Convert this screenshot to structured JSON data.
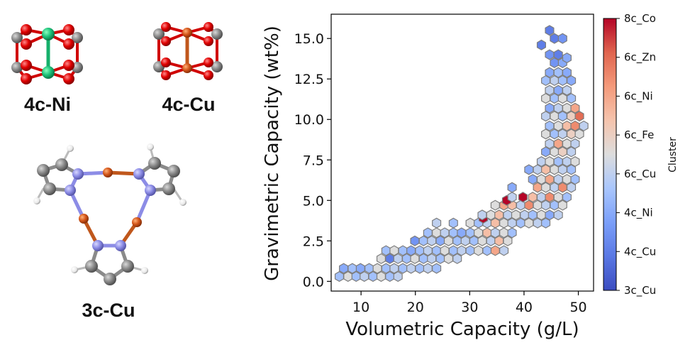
{
  "molecules": [
    {
      "id": "4c-Ni",
      "label": "4c-Ni"
    },
    {
      "id": "4c-Cu",
      "label": "4c-Cu"
    },
    {
      "id": "3c-Cu",
      "label": "3c-Cu"
    }
  ],
  "chart_data": {
    "type": "hexbin",
    "xlabel": "Volumetric Capacity (g/L)",
    "ylabel": "Gravimetric Capacity (wt%)",
    "xlim": [
      4.5,
      52.8
    ],
    "ylim": [
      -0.6,
      16.5
    ],
    "xticks": [
      10,
      20,
      30,
      40,
      50
    ],
    "yticks": [
      0.0,
      2.5,
      5.0,
      7.5,
      10.0,
      12.5,
      15.0
    ],
    "hex_x_step": 1.55,
    "hex_y_step": 0.55,
    "cluster_levels": [
      "3c_Cu",
      "4c_Cu",
      "4c_Ni",
      "6c_Cu",
      "6c_Fe",
      "6c_Ni",
      "6c_Zn",
      "8c_Co"
    ],
    "colorbar_label": "Cluster",
    "colormap": "coolwarm",
    "colors": {
      "low": "#3b4cc0",
      "mid": "#dddddd",
      "high": "#b40426",
      "edge": "#7d7d7d"
    },
    "hexbins": [
      {
        "x": 6.0,
        "y": 0.3,
        "c": 2.5
      },
      {
        "x": 7.6,
        "y": 0.3,
        "c": 3.5
      },
      {
        "x": 9.1,
        "y": 0.3,
        "c": 2.5
      },
      {
        "x": 10.6,
        "y": 0.3,
        "c": 3.0
      },
      {
        "x": 12.2,
        "y": 0.3,
        "c": 2.5
      },
      {
        "x": 13.7,
        "y": 0.3,
        "c": 3.5
      },
      {
        "x": 15.3,
        "y": 0.3,
        "c": 2.5
      },
      {
        "x": 16.8,
        "y": 0.3,
        "c": 3.0
      },
      {
        "x": 6.8,
        "y": 0.8,
        "c": 2.0
      },
      {
        "x": 8.4,
        "y": 0.8,
        "c": 2.5
      },
      {
        "x": 9.9,
        "y": 0.8,
        "c": 2.0
      },
      {
        "x": 11.5,
        "y": 0.8,
        "c": 2.5
      },
      {
        "x": 13.0,
        "y": 0.8,
        "c": 3.5
      },
      {
        "x": 14.6,
        "y": 0.8,
        "c": 2.5
      },
      {
        "x": 16.1,
        "y": 0.8,
        "c": 3.0
      },
      {
        "x": 17.7,
        "y": 0.8,
        "c": 2.5
      },
      {
        "x": 19.2,
        "y": 0.8,
        "c": 3.0
      },
      {
        "x": 20.8,
        "y": 0.8,
        "c": 2.5
      },
      {
        "x": 22.3,
        "y": 0.8,
        "c": 3.0
      },
      {
        "x": 23.9,
        "y": 0.8,
        "c": 2.5
      },
      {
        "x": 13.7,
        "y": 1.4,
        "c": 3.5
      },
      {
        "x": 15.3,
        "y": 1.4,
        "c": 1.0
      },
      {
        "x": 16.8,
        "y": 1.4,
        "c": 3.0
      },
      {
        "x": 18.4,
        "y": 1.4,
        "c": 2.5
      },
      {
        "x": 19.9,
        "y": 1.4,
        "c": 3.5
      },
      {
        "x": 21.5,
        "y": 1.4,
        "c": 2.5
      },
      {
        "x": 23.0,
        "y": 1.4,
        "c": 3.0
      },
      {
        "x": 24.6,
        "y": 1.4,
        "c": 2.5
      },
      {
        "x": 26.1,
        "y": 1.4,
        "c": 3.5
      },
      {
        "x": 27.7,
        "y": 1.4,
        "c": 3.0
      },
      {
        "x": 14.6,
        "y": 1.9,
        "c": 2.5
      },
      {
        "x": 16.1,
        "y": 1.9,
        "c": 3.5
      },
      {
        "x": 17.7,
        "y": 1.9,
        "c": 2.5
      },
      {
        "x": 19.2,
        "y": 1.9,
        "c": 2.0
      },
      {
        "x": 20.8,
        "y": 1.9,
        "c": 2.5
      },
      {
        "x": 22.3,
        "y": 1.9,
        "c": 3.0
      },
      {
        "x": 23.9,
        "y": 1.9,
        "c": 2.5
      },
      {
        "x": 25.4,
        "y": 1.9,
        "c": 3.5
      },
      {
        "x": 27.0,
        "y": 1.9,
        "c": 2.5
      },
      {
        "x": 28.5,
        "y": 1.9,
        "c": 3.0
      },
      {
        "x": 30.1,
        "y": 1.9,
        "c": 2.5
      },
      {
        "x": 31.6,
        "y": 1.9,
        "c": 3.5
      },
      {
        "x": 33.2,
        "y": 1.9,
        "c": 2.5
      },
      {
        "x": 34.7,
        "y": 1.9,
        "c": 5.0
      },
      {
        "x": 36.3,
        "y": 1.9,
        "c": 3.0
      },
      {
        "x": 19.9,
        "y": 2.5,
        "c": 1.5
      },
      {
        "x": 21.5,
        "y": 2.5,
        "c": 2.5
      },
      {
        "x": 23.0,
        "y": 2.5,
        "c": 3.0
      },
      {
        "x": 24.6,
        "y": 2.5,
        "c": 2.0
      },
      {
        "x": 26.1,
        "y": 2.5,
        "c": 3.5
      },
      {
        "x": 27.7,
        "y": 2.5,
        "c": 2.5
      },
      {
        "x": 29.2,
        "y": 2.5,
        "c": 3.0
      },
      {
        "x": 30.8,
        "y": 2.5,
        "c": 2.5
      },
      {
        "x": 32.3,
        "y": 2.5,
        "c": 3.5
      },
      {
        "x": 33.9,
        "y": 2.5,
        "c": 3.0
      },
      {
        "x": 35.4,
        "y": 2.5,
        "c": 4.5
      },
      {
        "x": 37.0,
        "y": 2.5,
        "c": 3.5
      },
      {
        "x": 22.3,
        "y": 3.0,
        "c": 2.5
      },
      {
        "x": 23.9,
        "y": 3.0,
        "c": 3.5
      },
      {
        "x": 25.4,
        "y": 3.0,
        "c": 3.0
      },
      {
        "x": 27.0,
        "y": 3.0,
        "c": 2.5
      },
      {
        "x": 28.5,
        "y": 3.0,
        "c": 2.0
      },
      {
        "x": 30.1,
        "y": 3.0,
        "c": 2.5
      },
      {
        "x": 31.6,
        "y": 3.0,
        "c": 3.5
      },
      {
        "x": 33.2,
        "y": 3.0,
        "c": 4.5
      },
      {
        "x": 34.7,
        "y": 3.0,
        "c": 3.0
      },
      {
        "x": 36.3,
        "y": 3.0,
        "c": 3.5
      },
      {
        "x": 37.8,
        "y": 3.0,
        "c": 2.5
      },
      {
        "x": 23.9,
        "y": 3.6,
        "c": 3.0
      },
      {
        "x": 27.0,
        "y": 3.6,
        "c": 2.5
      },
      {
        "x": 30.1,
        "y": 3.6,
        "c": 3.5
      },
      {
        "x": 31.6,
        "y": 3.6,
        "c": 2.5
      },
      {
        "x": 33.2,
        "y": 3.6,
        "c": 3.0
      },
      {
        "x": 34.7,
        "y": 3.6,
        "c": 4.5
      },
      {
        "x": 36.3,
        "y": 3.6,
        "c": 3.5
      },
      {
        "x": 37.8,
        "y": 3.6,
        "c": 3.0
      },
      {
        "x": 39.4,
        "y": 3.6,
        "c": 2.5
      },
      {
        "x": 40.9,
        "y": 3.6,
        "c": 3.5
      },
      {
        "x": 42.5,
        "y": 3.6,
        "c": 3.0
      },
      {
        "x": 44.0,
        "y": 3.6,
        "c": 2.5
      },
      {
        "x": 32.5,
        "y": 3.9,
        "c": 7.8
      },
      {
        "x": 32.3,
        "y": 4.1,
        "c": 3.0
      },
      {
        "x": 33.9,
        "y": 4.1,
        "c": 3.5
      },
      {
        "x": 35.4,
        "y": 4.1,
        "c": 4.5
      },
      {
        "x": 37.0,
        "y": 4.1,
        "c": 3.0
      },
      {
        "x": 38.5,
        "y": 4.1,
        "c": 3.5
      },
      {
        "x": 40.1,
        "y": 4.1,
        "c": 3.0
      },
      {
        "x": 41.6,
        "y": 4.1,
        "c": 2.5
      },
      {
        "x": 43.2,
        "y": 4.1,
        "c": 3.5
      },
      {
        "x": 44.7,
        "y": 4.1,
        "c": 2.0
      },
      {
        "x": 46.3,
        "y": 4.1,
        "c": 3.0
      },
      {
        "x": 34.7,
        "y": 4.7,
        "c": 3.5
      },
      {
        "x": 36.3,
        "y": 4.7,
        "c": 5.0
      },
      {
        "x": 37.8,
        "y": 4.7,
        "c": 4.5
      },
      {
        "x": 39.4,
        "y": 4.7,
        "c": 3.0
      },
      {
        "x": 40.9,
        "y": 4.7,
        "c": 5.5
      },
      {
        "x": 42.5,
        "y": 4.7,
        "c": 3.5
      },
      {
        "x": 44.0,
        "y": 4.7,
        "c": 3.0
      },
      {
        "x": 45.6,
        "y": 4.7,
        "c": 2.5
      },
      {
        "x": 47.1,
        "y": 4.7,
        "c": 3.5
      },
      {
        "x": 36.8,
        "y": 5.0,
        "c": 7.8
      },
      {
        "x": 39.8,
        "y": 5.2,
        "c": 7.8
      },
      {
        "x": 37.8,
        "y": 5.2,
        "c": 3.0
      },
      {
        "x": 41.6,
        "y": 5.2,
        "c": 4.5
      },
      {
        "x": 43.2,
        "y": 5.2,
        "c": 3.0
      },
      {
        "x": 44.7,
        "y": 5.2,
        "c": 5.5
      },
      {
        "x": 46.3,
        "y": 5.2,
        "c": 3.5
      },
      {
        "x": 47.9,
        "y": 5.2,
        "c": 2.5
      },
      {
        "x": 42.5,
        "y": 5.8,
        "c": 5.0
      },
      {
        "x": 44.0,
        "y": 5.8,
        "c": 3.5
      },
      {
        "x": 45.6,
        "y": 5.8,
        "c": 3.0
      },
      {
        "x": 47.1,
        "y": 5.8,
        "c": 5.5
      },
      {
        "x": 48.7,
        "y": 5.8,
        "c": 3.0
      },
      {
        "x": 37.8,
        "y": 5.8,
        "c": 2.0
      },
      {
        "x": 41.6,
        "y": 6.3,
        "c": 2.0
      },
      {
        "x": 43.2,
        "y": 6.3,
        "c": 3.5
      },
      {
        "x": 44.7,
        "y": 6.3,
        "c": 5.0
      },
      {
        "x": 46.3,
        "y": 6.3,
        "c": 3.0
      },
      {
        "x": 47.9,
        "y": 6.3,
        "c": 3.5
      },
      {
        "x": 49.4,
        "y": 6.3,
        "c": 2.5
      },
      {
        "x": 40.9,
        "y": 6.9,
        "c": 2.0
      },
      {
        "x": 42.5,
        "y": 6.9,
        "c": 3.0
      },
      {
        "x": 44.0,
        "y": 6.9,
        "c": 4.5
      },
      {
        "x": 45.6,
        "y": 6.9,
        "c": 3.5
      },
      {
        "x": 47.1,
        "y": 6.9,
        "c": 3.0
      },
      {
        "x": 48.7,
        "y": 6.9,
        "c": 2.5
      },
      {
        "x": 43.2,
        "y": 7.4,
        "c": 3.0
      },
      {
        "x": 44.7,
        "y": 7.4,
        "c": 3.5
      },
      {
        "x": 46.3,
        "y": 7.4,
        "c": 2.5
      },
      {
        "x": 47.9,
        "y": 7.4,
        "c": 3.0
      },
      {
        "x": 49.4,
        "y": 7.4,
        "c": 3.5
      },
      {
        "x": 44.0,
        "y": 8.0,
        "c": 2.0
      },
      {
        "x": 45.6,
        "y": 8.0,
        "c": 3.5
      },
      {
        "x": 47.1,
        "y": 8.0,
        "c": 4.0
      },
      {
        "x": 48.7,
        "y": 8.0,
        "c": 3.0
      },
      {
        "x": 44.7,
        "y": 8.5,
        "c": 3.0
      },
      {
        "x": 46.3,
        "y": 8.5,
        "c": 5.0
      },
      {
        "x": 47.9,
        "y": 8.5,
        "c": 3.5
      },
      {
        "x": 49.4,
        "y": 8.5,
        "c": 3.0
      },
      {
        "x": 44.0,
        "y": 9.1,
        "c": 3.5
      },
      {
        "x": 45.6,
        "y": 9.1,
        "c": 2.5
      },
      {
        "x": 47.1,
        "y": 9.1,
        "c": 3.0
      },
      {
        "x": 48.7,
        "y": 9.1,
        "c": 4.0
      },
      {
        "x": 50.2,
        "y": 9.1,
        "c": 3.5
      },
      {
        "x": 44.7,
        "y": 9.6,
        "c": 2.5
      },
      {
        "x": 46.3,
        "y": 9.6,
        "c": 3.5
      },
      {
        "x": 47.9,
        "y": 9.6,
        "c": 4.5
      },
      {
        "x": 49.4,
        "y": 9.6,
        "c": 5.5
      },
      {
        "x": 51.0,
        "y": 9.6,
        "c": 3.0
      },
      {
        "x": 44.0,
        "y": 10.2,
        "c": 3.0
      },
      {
        "x": 45.6,
        "y": 10.2,
        "c": 3.5
      },
      {
        "x": 47.1,
        "y": 10.2,
        "c": 2.5
      },
      {
        "x": 48.7,
        "y": 10.2,
        "c": 4.0
      },
      {
        "x": 50.2,
        "y": 10.2,
        "c": 6.0
      },
      {
        "x": 44.7,
        "y": 10.7,
        "c": 2.0
      },
      {
        "x": 46.3,
        "y": 10.7,
        "c": 3.0
      },
      {
        "x": 47.9,
        "y": 10.7,
        "c": 3.5
      },
      {
        "x": 49.4,
        "y": 10.7,
        "c": 5.0
      },
      {
        "x": 44.0,
        "y": 11.3,
        "c": 3.5
      },
      {
        "x": 45.6,
        "y": 11.3,
        "c": 2.5
      },
      {
        "x": 47.1,
        "y": 11.3,
        "c": 3.5
      },
      {
        "x": 48.7,
        "y": 11.3,
        "c": 2.5
      },
      {
        "x": 44.7,
        "y": 11.8,
        "c": 3.0
      },
      {
        "x": 46.3,
        "y": 11.8,
        "c": 2.0
      },
      {
        "x": 47.9,
        "y": 11.8,
        "c": 3.0
      },
      {
        "x": 44.0,
        "y": 12.4,
        "c": 2.5
      },
      {
        "x": 45.6,
        "y": 12.4,
        "c": 3.0
      },
      {
        "x": 47.1,
        "y": 12.4,
        "c": 2.5
      },
      {
        "x": 48.7,
        "y": 12.4,
        "c": 2.0
      },
      {
        "x": 44.7,
        "y": 12.9,
        "c": 2.0
      },
      {
        "x": 46.3,
        "y": 12.9,
        "c": 2.5
      },
      {
        "x": 47.9,
        "y": 12.9,
        "c": 2.0
      },
      {
        "x": 45.6,
        "y": 13.5,
        "c": 1.5
      },
      {
        "x": 47.1,
        "y": 13.5,
        "c": 2.0
      },
      {
        "x": 46.3,
        "y": 14.0,
        "c": 1.0
      },
      {
        "x": 44.7,
        "y": 14.0,
        "c": 1.5
      },
      {
        "x": 47.9,
        "y": 13.8,
        "c": 2.0
      },
      {
        "x": 43.2,
        "y": 14.6,
        "c": 1.0
      },
      {
        "x": 45.6,
        "y": 15.0,
        "c": 1.0
      },
      {
        "x": 47.1,
        "y": 15.0,
        "c": 1.5
      },
      {
        "x": 44.7,
        "y": 15.5,
        "c": 1.0
      }
    ]
  }
}
